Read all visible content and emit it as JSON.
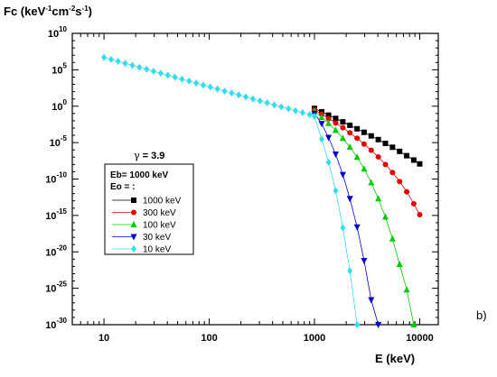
{
  "chart_data": {
    "type": "scatter",
    "ylabel": {
      "main": "Fc (keV",
      "exp1": "-1",
      "mid": "cm",
      "exp2": "-2",
      "tail": "s",
      "exp3": "-1",
      "close": ")"
    },
    "xlabel": "E (keV)",
    "panel_label": "b)",
    "annotation": {
      "symbol": "γ",
      "text": " = 3.9"
    },
    "legend_title_1": "Eb= 1000 keV",
    "legend_title_2": "Eo = :",
    "x_scale": "log",
    "y_scale": "log",
    "xlim": [
      5,
      15000
    ],
    "ylim": [
      1e-30,
      10000000000.0
    ],
    "x_ticks": [
      {
        "value": 10,
        "label": "10"
      },
      {
        "value": 100,
        "label": "100"
      },
      {
        "value": 1000,
        "label": "1000"
      },
      {
        "value": 10000,
        "label": "10000"
      }
    ],
    "y_ticks": [
      {
        "value": 10000000000.0,
        "base": "10",
        "exp": "10"
      },
      {
        "value": 100000.0,
        "base": "10",
        "exp": "5"
      },
      {
        "value": 1,
        "base": "10",
        "exp": "0"
      },
      {
        "value": 1e-05,
        "base": "10",
        "exp": "-5"
      },
      {
        "value": 1e-10,
        "base": "10",
        "exp": "-10"
      },
      {
        "value": 1e-15,
        "base": "10",
        "exp": "-15"
      },
      {
        "value": 1e-20,
        "base": "10",
        "exp": "-20"
      },
      {
        "value": 1e-25,
        "base": "10",
        "exp": "-25"
      },
      {
        "value": 1e-30,
        "base": "10",
        "exp": "-30"
      }
    ],
    "series": [
      {
        "name": "1000 keV",
        "color": "#000000",
        "marker": "square",
        "x": [
          1000,
          1170,
          1360,
          1590,
          1860,
          2170,
          2540,
          2960,
          3460,
          4040,
          4720,
          5510,
          6440,
          7520,
          8780,
          10000
        ],
        "y": [
          0.5,
          0.17,
          0.059,
          0.021,
          0.0071,
          0.0024,
          0.00079,
          0.00026,
          8.3e-05,
          2.6e-05,
          7.9e-06,
          2.3e-06,
          6.3e-07,
          1.6e-07,
          4e-08,
          1.2e-08
        ]
      },
      {
        "name": "300 keV",
        "color": "#e60000",
        "marker": "circle",
        "x": [
          1000,
          1170,
          1360,
          1590,
          1860,
          2170,
          2540,
          2960,
          3460,
          4040,
          4720,
          5510,
          6440,
          7520,
          8780,
          10000
        ],
        "y": [
          0.3,
          0.08,
          0.02,
          0.005,
          0.0011,
          0.00022,
          4e-05,
          6.3e-06,
          8.9e-07,
          1.1e-07,
          1e-08,
          7.9e-10,
          4.5e-11,
          1.8e-12,
          4e-14,
          1.3e-15
        ]
      },
      {
        "name": "100 keV",
        "color": "#00cc00",
        "marker": "triangle-up",
        "x": [
          1000,
          1170,
          1360,
          1590,
          1860,
          2170,
          2540,
          2960,
          3460,
          4040,
          4720,
          5510,
          6440,
          7520,
          8780
        ],
        "y": [
          0.2,
          0.03,
          0.0045,
          0.0005,
          4e-05,
          2.5e-06,
          1e-07,
          2.5e-09,
          3.2e-11,
          2e-13,
          6.3e-16,
          6.3e-19,
          2e-22,
          6.3e-26,
          1e-30
        ]
      },
      {
        "name": "30 keV",
        "color": "#0000cc",
        "marker": "triangle-down",
        "x": [
          1000,
          1170,
          1360,
          1590,
          1860,
          2170,
          2540,
          2960,
          3460,
          4040
        ],
        "y": [
          0.1,
          0.004,
          5e-05,
          2.5e-07,
          4e-10,
          2e-13,
          2.5e-17,
          6.3e-22,
          2.5e-27,
          1e-30
        ]
      },
      {
        "name": "10 keV",
        "color": "#33ddee",
        "marker": "diamond",
        "x": [
          10,
          11.7,
          13.6,
          15.9,
          18.6,
          21.7,
          25.4,
          29.6,
          34.6,
          40.4,
          47.2,
          55.1,
          64.4,
          75.2,
          87.8,
          102.5,
          119.7,
          139.8,
          163.3,
          190.7,
          222.7,
          260.1,
          303.8,
          354.8,
          414.3,
          483.9,
          565.1,
          660,
          770.8,
          900.2,
          1000,
          1170,
          1360,
          1590,
          1860,
          2170,
          2540
        ],
        "y": [
          5000000.0,
          2700000.0,
          1450000.0,
          770000.0,
          410000.0,
          220000.0,
          120000.0,
          63000.0,
          34000.0,
          18000.0,
          9700.0,
          5200.0,
          2800.0,
          1500.0,
          790,
          430,
          230,
          120,
          65,
          35,
          19,
          10,
          5.4,
          2.9,
          1.5,
          0.85,
          0.45,
          0.24,
          0.13,
          0.07,
          0.04,
          3e-05,
          2e-08,
          2.5e-12,
          2e-17,
          2.5e-23,
          1e-30
        ]
      }
    ]
  }
}
